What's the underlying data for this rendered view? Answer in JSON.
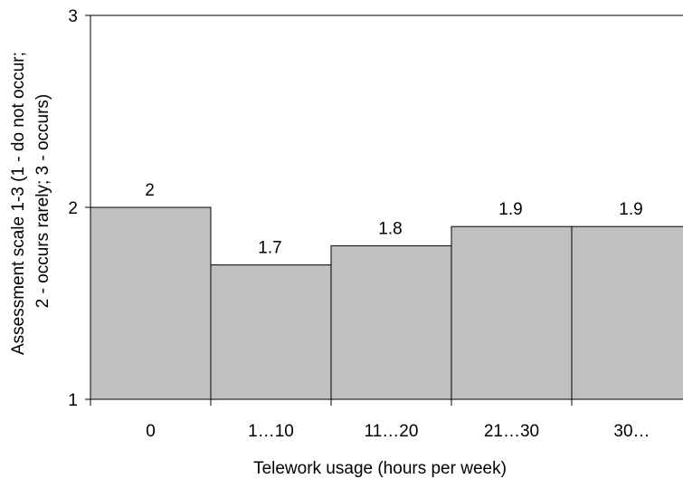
{
  "chart_data": {
    "type": "bar",
    "categories": [
      "0",
      "1…10",
      "11…20",
      "21…30",
      "30…"
    ],
    "values": [
      2,
      1.7,
      1.8,
      1.9,
      1.9
    ],
    "data_labels": [
      "2",
      "1.7",
      "1.8",
      "1.9",
      "1.9"
    ],
    "xlabel": "Telework usage (hours per week)",
    "ylabel_lines": [
      "Assessment scale 1-3 (1 - do not occur;",
      "2 - occurs rarely; 3 - occurs)"
    ],
    "ylim": [
      1,
      3
    ],
    "yticks": [
      1,
      2,
      3
    ],
    "ytick_labels": [
      "1",
      "2",
      "3"
    ],
    "grid": false,
    "legend": "none",
    "colors": {
      "bar_fill": "#c0c0c0",
      "bar_stroke": "#000000",
      "axis": "#000000"
    }
  }
}
